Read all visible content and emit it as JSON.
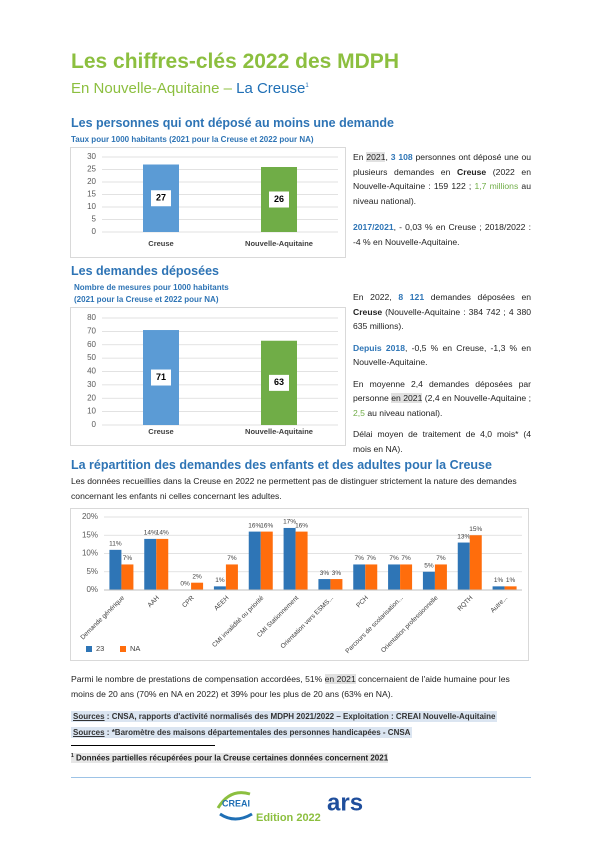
{
  "header": {
    "title": "Les chiffres-clés 2022 des MDPH",
    "subtitle": "En Nouvelle-Aquitaine – ",
    "subtitle_place": "La Creuse",
    "footnote_mark": "1"
  },
  "section1": {
    "heading": "Les personnes qui ont déposé au moins une demande",
    "paragraphs": [
      [
        "En ",
        "2021",
        ", ",
        "3 108",
        " personnes ont déposé une ou plusieurs demandes en ",
        "Creuse",
        " (2022 en Nouvelle-Aquitaine : 159 122 ; ",
        "1,7 millions",
        " au niveau national)."
      ],
      [
        "2017/2021",
        ", - 0,03 % en Creuse ; 2018/2022 : -4 % en Nouvelle-Aquitaine."
      ]
    ]
  },
  "section2": {
    "heading": "Les demandes déposées",
    "paragraphs": [
      [
        "En 2022, ",
        "8 121",
        " demandes déposées en ",
        "Creuse",
        " (Nouvelle-Aquitaine : 384 742 ; 4 380 635 millions)."
      ],
      [
        "Depuis 2018",
        ", -0,5 % en Creuse, -1,3 % en Nouvelle-Aquitaine."
      ],
      [
        "En moyenne 2,4 demandes déposées par personne ",
        "en 2021",
        " (2,4 en Nouvelle-Aquitaine ; ",
        "2,5",
        " au niveau national)."
      ],
      [
        "Délai moyen de traitement de 4,0 mois* (4 mois en NA)."
      ]
    ]
  },
  "section3": {
    "heading": "La répartition des demandes des enfants et des adultes pour la Creuse",
    "intro": "Les données recueillies dans la Creuse en 2022 ne permettent pas de distinguer strictement la nature des demandes concernant les enfants ni celles concernant les adultes.",
    "conclusion": [
      "Parmi le nombre de prestations de compensation accordées, 51% ",
      "en 2021",
      " concernaient de l'aide humaine pour les moins de 20 ans (70% en NA en 2022) et 39% pour les plus de 20 ans (63% en NA)."
    ]
  },
  "chart_data": [
    {
      "type": "bar",
      "title": "Taux pour 1000 habitants (2021 pour la Creuse et 2022 pour NA)",
      "categories": [
        "Creuse",
        "Nouvelle-Aquitaine"
      ],
      "values": [
        27,
        26
      ],
      "colors": [
        "#5b9bd5",
        "#70ad47"
      ],
      "ylim": [
        0,
        30
      ],
      "yticks": [
        0,
        5,
        10,
        15,
        20,
        25,
        30
      ],
      "grid": true
    },
    {
      "type": "bar",
      "title": "Nombre de mesures pour 1000 habitants",
      "subtitle": "(2021 pour la Creuse et 2022 pour NA)",
      "categories": [
        "Creuse",
        "Nouvelle-Aquitaine"
      ],
      "values": [
        71,
        63
      ],
      "colors": [
        "#5b9bd5",
        "#70ad47"
      ],
      "ylim": [
        0,
        80
      ],
      "yticks": [
        0,
        10,
        20,
        30,
        40,
        50,
        60,
        70,
        80
      ],
      "grid": true
    },
    {
      "type": "grouped_bar",
      "categories": [
        "Demande générique",
        "AAH",
        "CPR",
        "AEEH",
        "CMI invalidité ou priorité",
        "CMI Stationnement",
        "Orientation vers ESMS...",
        "PCH",
        "Parcours de scolarisation...",
        "Orientation professionnelle",
        "RQTH",
        "Autre..."
      ],
      "series": [
        {
          "name": "23",
          "color": "#2e75b6",
          "values": [
            11,
            14,
            0,
            1,
            16,
            17,
            3,
            7,
            7,
            5,
            13,
            1
          ],
          "value_labels": [
            "11%",
            "14%",
            "0%",
            "1%",
            "16%",
            "17%",
            "3%",
            "7%",
            "7%",
            "5%",
            "13%",
            "1%"
          ]
        },
        {
          "name": "NA",
          "color": "#ff6d0c",
          "values": [
            7,
            14,
            2,
            7,
            16,
            16,
            3,
            7,
            7,
            7,
            15,
            1
          ],
          "value_labels": [
            "7%",
            "14%",
            "2%",
            "7%",
            "16%",
            "16%",
            "3%",
            "7%",
            "7%",
            "7%",
            "15%",
            "1%"
          ]
        }
      ],
      "ylim": [
        0,
        20
      ],
      "yticks": [
        {
          "value": 0,
          "label": "0%"
        },
        {
          "value": 5,
          "label": "5%"
        },
        {
          "value": 10,
          "label": "10%"
        },
        {
          "value": 15,
          "label": "15%"
        },
        {
          "value": 20,
          "label": "20%"
        }
      ],
      "grid": true,
      "legend": "bottom-left"
    }
  ],
  "sources": [
    [
      "Sources",
      " : CNSA, rapports d'activité normalisés des MDPH 2021/2022 – Exploitation : CREAI Nouvelle-Aquitaine"
    ],
    [
      "Sources",
      " : *Baromètre des maisons départementales des personnes handicapées - CNSA"
    ]
  ],
  "footnote": [
    "1",
    "Données partielles récupérées pour la Creuse certaines données concernent 2021"
  ],
  "logos": {
    "creai": "CREAI",
    "ars": "ars",
    "edition": "Edition 2022"
  }
}
